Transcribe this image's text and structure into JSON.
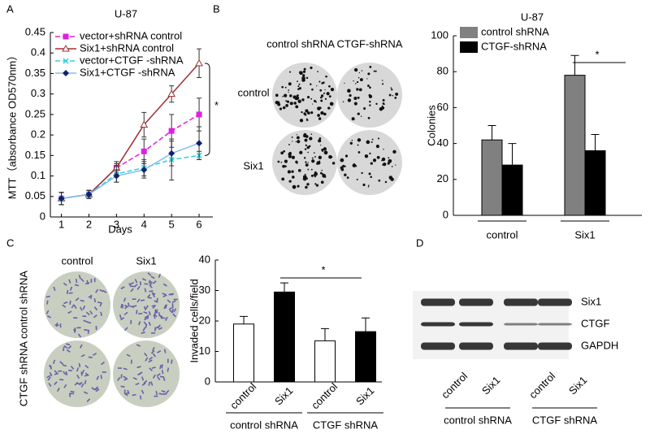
{
  "panel_letters": [
    "A",
    "B",
    "C",
    "D"
  ],
  "colony_images": {
    "columns": [
      "control  shRNA",
      "CTGF-shRNA"
    ],
    "rows": [
      "control",
      "Six1"
    ]
  },
  "invasion_images": {
    "columns": [
      "control",
      "Six1"
    ],
    "rows": [
      "control shRNA",
      "CTGF shRNA"
    ]
  },
  "western_blot": {
    "bands": [
      "Six1",
      "CTGF",
      "GAPDH"
    ],
    "lanes": [
      "control",
      "Six1",
      "control",
      "Six1"
    ],
    "groups": [
      "control shRNA",
      "CTGF shRNA"
    ]
  },
  "chart_data": [
    {
      "type": "line",
      "title": "U-87",
      "y_label": "MTT（absorbance OD570nm）",
      "x_label": "Days",
      "x": [
        1,
        2,
        3,
        4,
        5,
        6
      ],
      "xlim": [
        0.6,
        6.5
      ],
      "xticks": [
        1,
        2,
        3,
        4,
        5,
        6
      ],
      "ylim": [
        0,
        0.45
      ],
      "yticks": [
        0,
        0.05,
        0.1,
        0.15,
        0.2,
        0.25,
        0.3,
        0.35,
        0.4,
        0.45
      ],
      "legend": "upper left",
      "annotations": [
        "*"
      ],
      "series": [
        {
          "name": "vector+shRNA  control",
          "color": "#e020e0",
          "marker": "square",
          "dash": true,
          "values": [
            0.045,
            0.055,
            0.12,
            0.16,
            0.21,
            0.25
          ],
          "errors": [
            0.015,
            0.01,
            0.015,
            0.03,
            0.04,
            0.04
          ]
        },
        {
          "name": "Six1+shRNA control",
          "color": "#a03030",
          "marker": "triangle",
          "dash": false,
          "values": [
            0.045,
            0.055,
            0.12,
            0.225,
            0.3,
            0.375
          ],
          "errors": [
            0.015,
            0.01,
            0.01,
            0.03,
            0.02,
            0.035
          ]
        },
        {
          "name": "vector+CTGF -shRNA",
          "color": "#30d0e0",
          "marker": "x",
          "dash": true,
          "values": [
            0.045,
            0.055,
            0.105,
            0.12,
            0.14,
            0.15
          ],
          "errors": [
            0.015,
            0.01,
            0.02,
            0.02,
            0.05,
            0.01
          ]
        },
        {
          "name": "Six1+CTGF -shRNA",
          "color": "#80c0f0",
          "marker": "diamond",
          "dash": false,
          "values": [
            0.045,
            0.055,
            0.1,
            0.115,
            0.155,
            0.18
          ],
          "errors": [
            0.015,
            0.01,
            0.015,
            0.02,
            0.03,
            0.04
          ]
        }
      ]
    },
    {
      "type": "bar",
      "title": "U-87",
      "y_label": "Colonies",
      "categories": [
        "control",
        "Six1"
      ],
      "ylim": [
        0,
        100
      ],
      "yticks": [
        0,
        20,
        40,
        60,
        80,
        100
      ],
      "legend": "upper left",
      "annotations": [
        "*"
      ],
      "series": [
        {
          "name": "control  shRNA",
          "color": "#808080",
          "values": [
            42,
            78
          ],
          "errors": [
            8,
            11
          ]
        },
        {
          "name": "CTGF-shRNA",
          "color": "#000000",
          "values": [
            28,
            36
          ],
          "errors": [
            12,
            9
          ]
        }
      ]
    },
    {
      "type": "bar",
      "y_label": "Invaded cells/field",
      "categories": [
        "control",
        "Six1",
        "control",
        "Six1"
      ],
      "group_labels": [
        "control  shRNA",
        "CTGF  shRNA"
      ],
      "ylim": [
        0,
        40
      ],
      "yticks": [
        0,
        10,
        20,
        30,
        40
      ],
      "annotations": [
        "*"
      ],
      "colors": [
        "#ffffff",
        "#000000",
        "#ffffff",
        "#000000"
      ],
      "values": [
        19,
        29.5,
        13.5,
        16.5
      ],
      "errors": [
        2.5,
        3,
        4,
        4.5
      ]
    }
  ]
}
